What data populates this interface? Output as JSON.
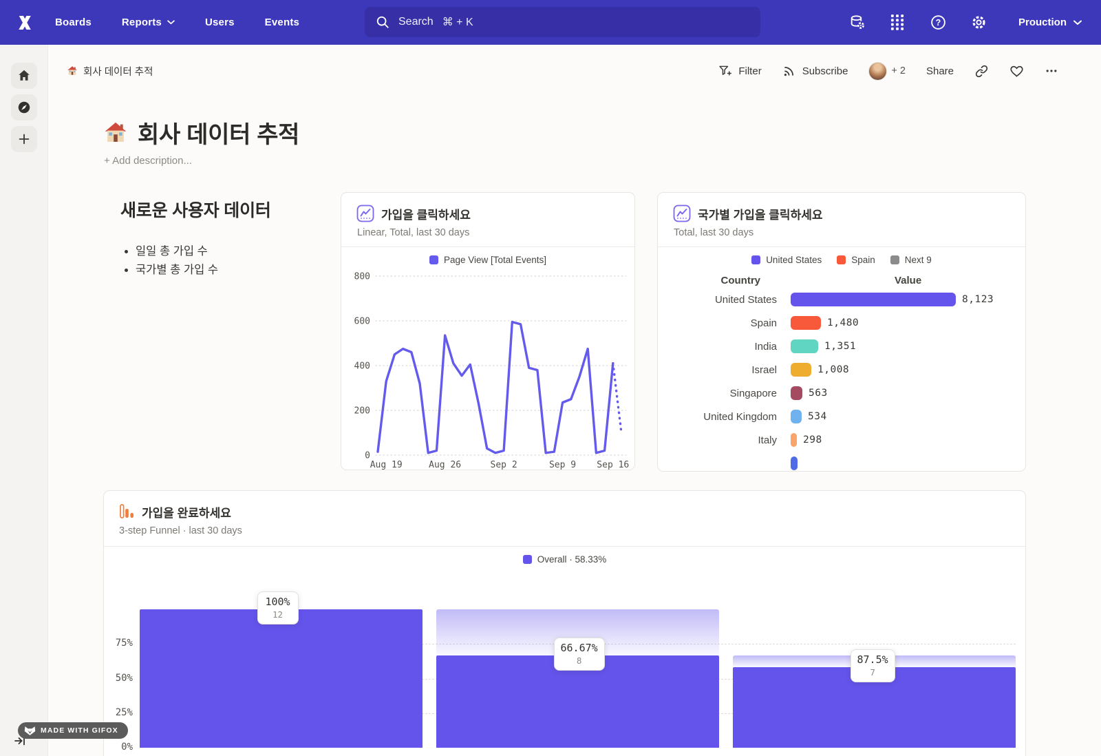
{
  "navbar": {
    "links": [
      "Boards",
      "Reports",
      "Users",
      "Events"
    ],
    "search": {
      "label": "Search",
      "shortcut": "⌘ + K"
    },
    "project": "Prouction"
  },
  "board_header": {
    "breadcrumb": "회사 데이터 추적",
    "filter_label": "Filter",
    "subscribe_label": "Subscribe",
    "collaborators_extra": "+ 2",
    "share_label": "Share"
  },
  "page": {
    "title": "회사 데이터 추적",
    "add_description": "+ Add description..."
  },
  "text_widget": {
    "heading": "새로운 사용자 데이터",
    "bullets": [
      "일일 총 가입 수",
      "국가별 총 가입 수"
    ]
  },
  "chart_data": [
    {
      "id": "signups-line",
      "type": "line",
      "title": "가입을 클릭하세요",
      "subtitle": "Linear, Total, last 30 days",
      "legend": [
        "Page View [Total Events]"
      ],
      "series": [
        {
          "name": "Page View [Total Events]",
          "color": "#645aeb",
          "values": [
            15,
            330,
            450,
            475,
            460,
            320,
            10,
            20,
            535,
            410,
            355,
            405,
            230,
            30,
            10,
            20,
            595,
            585,
            390,
            380,
            10,
            15,
            235,
            250,
            350,
            475,
            10,
            20,
            410,
            100
          ],
          "last_segment_dotted": true
        }
      ],
      "x_tick_labels": [
        "Aug 19",
        "Aug 26",
        "Sep 2",
        "Sep 9",
        "Sep 16"
      ],
      "x_tick_indices": [
        1,
        8,
        15,
        22,
        28
      ],
      "y_ticks": [
        0,
        200,
        400,
        600,
        800
      ],
      "ylim": [
        0,
        800
      ],
      "grid": "horizontal-dotted",
      "legend_position": "top-center"
    },
    {
      "id": "signups-by-country",
      "type": "bar",
      "title": "국가별 가입을 클릭하세요",
      "subtitle": "Total, last 30 days",
      "legend": [
        {
          "label": "United States",
          "color": "#6454ec"
        },
        {
          "label": "Spain",
          "color": "#f7593a"
        },
        {
          "label": "Next 9",
          "color": "#8c8c8c"
        }
      ],
      "columns": [
        "Country",
        "Value"
      ],
      "rows": [
        {
          "label": "United States",
          "value": 8123,
          "display": "8,123",
          "color": "#6454ec"
        },
        {
          "label": "Spain",
          "value": 1480,
          "display": "1,480",
          "color": "#f7593a"
        },
        {
          "label": "India",
          "value": 1351,
          "display": "1,351",
          "color": "#60d5c2"
        },
        {
          "label": "Israel",
          "value": 1008,
          "display": "1,008",
          "color": "#eead2f"
        },
        {
          "label": "Singapore",
          "value": 563,
          "display": "563",
          "color": "#a54b61"
        },
        {
          "label": "United Kingdom",
          "value": 534,
          "display": "534",
          "color": "#70b2ef"
        },
        {
          "label": "Italy",
          "value": 298,
          "display": "298",
          "color": "#f9a468"
        }
      ],
      "clipped_row_color": "#4f6be8"
    },
    {
      "id": "signup-funnel",
      "type": "funnel",
      "title": "가입을 완료하세요",
      "subtitle": "3-step Funnel · last 30 days",
      "legend": [
        {
          "label": "Overall · 58.33%",
          "color": "#6454ec"
        }
      ],
      "y_tick_labels": [
        "0%",
        "25%",
        "50%",
        "75%"
      ],
      "steps": [
        {
          "conversion": "100%",
          "count": "12",
          "overall_pct": 100
        },
        {
          "conversion": "66.67%",
          "count": "8",
          "overall_pct": 66.67
        },
        {
          "conversion": "87.5%",
          "count": "7",
          "overall_pct": 58.33
        }
      ]
    }
  ],
  "badge": {
    "label": "MADE WITH GIFOX"
  }
}
